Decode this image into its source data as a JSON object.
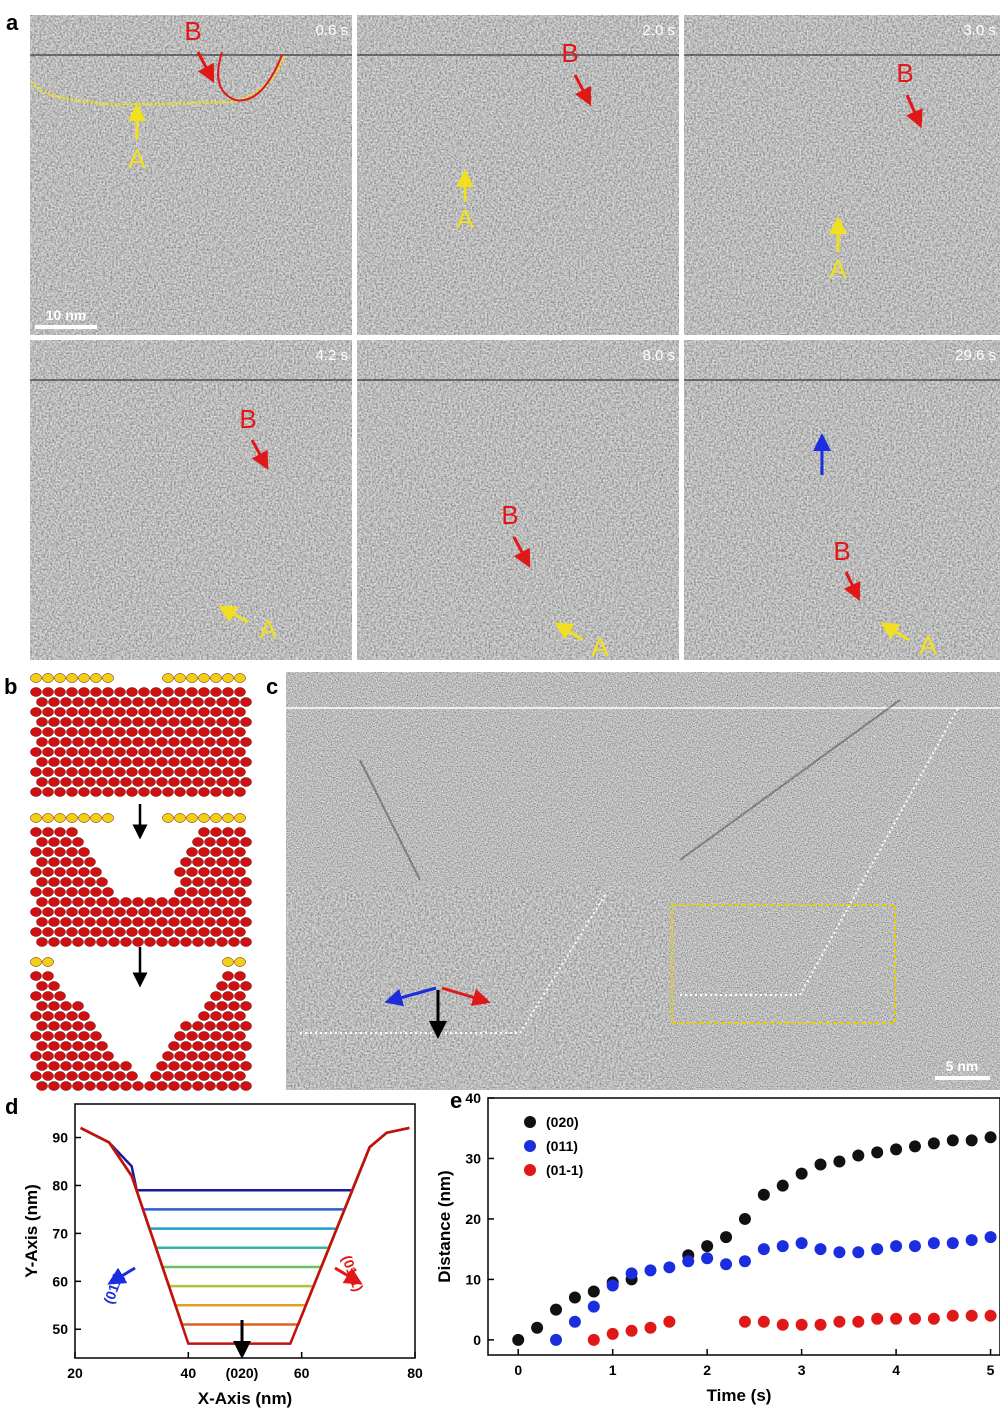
{
  "panel_a": {
    "label": "a",
    "scale_bar": "10 nm",
    "frames": [
      {
        "time": "0.6 s",
        "markers": [
          "B",
          "A"
        ]
      },
      {
        "time": "2.0 s",
        "markers": [
          "B",
          "A"
        ]
      },
      {
        "time": "3.0 s",
        "markers": [
          "B",
          "A"
        ]
      },
      {
        "time": "4.2 s",
        "markers": [
          "B",
          "A"
        ]
      },
      {
        "time": "8.0 s",
        "markers": [
          "B",
          "A"
        ]
      },
      {
        "time": "29.6 s",
        "markers": [
          "B",
          "A"
        ]
      }
    ]
  },
  "panel_b": {
    "label": "b"
  },
  "panel_c": {
    "label": "c",
    "scale_bar": "5 nm"
  },
  "chart_data": [
    {
      "type": "line",
      "panel": "d",
      "x_label": "X-Axis (nm)",
      "y_label": "Y-Axis (nm)",
      "xlim": [
        20,
        80
      ],
      "xticks": [
        20,
        40,
        60,
        80
      ],
      "ylim": [
        44,
        97
      ],
      "yticks": [
        50,
        60,
        70,
        80,
        90
      ],
      "annotations": [
        "(011)",
        "(01-1)",
        "(020)"
      ],
      "series": [
        {
          "color": "#1a1a9a",
          "x": [
            21,
            26,
            30,
            30.9,
            49,
            68.9,
            72,
            75,
            79
          ],
          "values": [
            92,
            89,
            84,
            79,
            79,
            79,
            88,
            91,
            92
          ]
        },
        {
          "color": "#2a5fd0",
          "x": [
            21,
            26,
            30,
            32.0,
            49,
            67.6,
            72,
            75,
            79
          ],
          "values": [
            92,
            89,
            82,
            75,
            75,
            75,
            88,
            91,
            92
          ]
        },
        {
          "color": "#1f9ec8",
          "x": [
            21,
            26,
            30,
            33.1,
            49,
            66.2,
            72,
            75,
            79
          ],
          "values": [
            92,
            89,
            82,
            71,
            71,
            71,
            88,
            91,
            92
          ]
        },
        {
          "color": "#2fb8a8",
          "x": [
            21,
            26,
            30,
            34.3,
            49,
            64.8,
            72,
            75,
            79
          ],
          "values": [
            92,
            89,
            82,
            67,
            67,
            67,
            88,
            91,
            92
          ]
        },
        {
          "color": "#6cc060",
          "x": [
            21,
            26,
            30,
            35.4,
            49,
            63.5,
            72,
            75,
            79
          ],
          "values": [
            92,
            89,
            82,
            63,
            63,
            63,
            88,
            91,
            92
          ]
        },
        {
          "color": "#b0c040",
          "x": [
            21,
            26,
            30,
            36.6,
            49,
            62.1,
            72,
            75,
            79
          ],
          "values": [
            92,
            89,
            82,
            59,
            59,
            59,
            88,
            91,
            92
          ]
        },
        {
          "color": "#e0a020",
          "x": [
            21,
            26,
            30,
            37.7,
            49,
            60.7,
            72,
            75,
            79
          ],
          "values": [
            92,
            89,
            82,
            55,
            55,
            55,
            88,
            91,
            92
          ]
        },
        {
          "color": "#e06020",
          "x": [
            21,
            26,
            30,
            38.9,
            49,
            59.4,
            72,
            75,
            79
          ],
          "values": [
            92,
            89,
            82,
            51,
            51,
            51,
            88,
            91,
            92
          ]
        },
        {
          "color": "#c01010",
          "x": [
            21,
            26,
            30,
            40.0,
            49,
            58.0,
            72,
            75,
            79
          ],
          "values": [
            92,
            89,
            82,
            47,
            47,
            47,
            88,
            91,
            92
          ]
        }
      ]
    },
    {
      "type": "scatter",
      "panel": "e",
      "x_label": "Time (s)",
      "y_label": "Distance (nm)",
      "xlim": [
        -0.32,
        5.1
      ],
      "xticks": [
        0,
        1,
        2,
        3,
        4,
        5
      ],
      "ylim": [
        -2.5,
        40
      ],
      "yticks": [
        0,
        10,
        20,
        30,
        40
      ],
      "legend": "upper left",
      "series": [
        {
          "name": "(020)",
          "color": "#111111",
          "x": [
            0,
            0.2,
            0.4,
            0.6,
            0.8,
            1.0,
            1.2,
            1.8,
            2.0,
            2.2,
            2.4,
            2.6,
            2.8,
            3.0,
            3.2,
            3.4,
            3.6,
            3.8,
            4.0,
            4.2,
            4.4,
            4.6,
            4.8,
            5.0
          ],
          "values": [
            0,
            2,
            5,
            7,
            8,
            9.5,
            10,
            14,
            15.5,
            17,
            20,
            24,
            25.5,
            27.5,
            29,
            29.5,
            30.5,
            31,
            31.5,
            32,
            32.5,
            33,
            33,
            33.5
          ]
        },
        {
          "name": "(011)",
          "color": "#1a2ee0",
          "x": [
            0.4,
            0.6,
            0.8,
            1.0,
            1.2,
            1.4,
            1.6,
            1.8,
            2.0,
            2.2,
            2.4,
            2.6,
            2.8,
            3.0,
            3.2,
            3.4,
            3.6,
            3.8,
            4.0,
            4.2,
            4.4,
            4.6,
            4.8,
            5.0
          ],
          "values": [
            0,
            3,
            5.5,
            9,
            11,
            11.5,
            12,
            13,
            13.5,
            12.5,
            13,
            15,
            15.5,
            16,
            15,
            14.5,
            14.5,
            15,
            15.5,
            15.5,
            16,
            16,
            16.5,
            17
          ]
        },
        {
          "name": "(01-1)",
          "color": "#e01818",
          "x": [
            0.8,
            1.0,
            1.2,
            1.4,
            1.6,
            2.4,
            2.6,
            2.8,
            3.0,
            3.2,
            3.4,
            3.6,
            3.8,
            4.0,
            4.2,
            4.4,
            4.6,
            4.8,
            5.0
          ],
          "values": [
            0,
            1,
            1.5,
            2,
            3,
            3,
            3,
            2.5,
            2.5,
            2.5,
            3,
            3,
            3.5,
            3.5,
            3.5,
            3.5,
            4,
            4,
            4
          ]
        }
      ]
    }
  ]
}
